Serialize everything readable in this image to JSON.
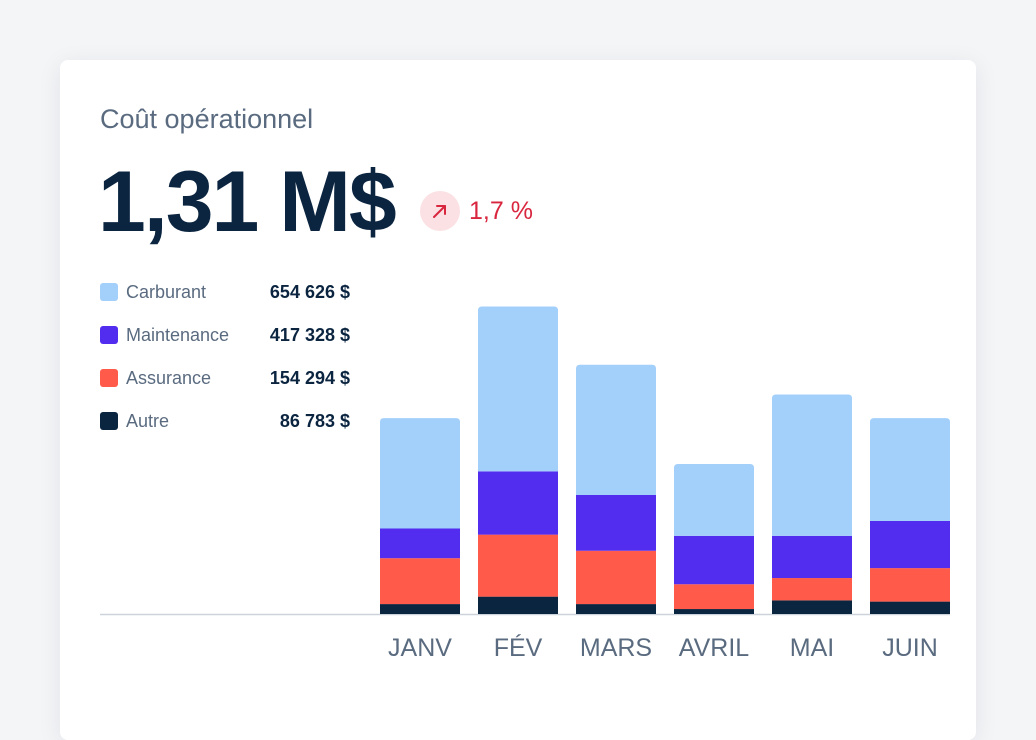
{
  "card": {
    "title": "Coût opérationnel",
    "total": "1,31 M$",
    "change": {
      "value": "1,7 %",
      "direction": "up",
      "color": "#d9263f",
      "icon": "arrow-up-right-icon"
    }
  },
  "legend": [
    {
      "label": "Carburant",
      "value": "654 626 $",
      "color": "#a3cffb"
    },
    {
      "label": "Maintenance",
      "value": "417 328 $",
      "color": "#522cef"
    },
    {
      "label": "Assurance",
      "value": "154 294 $",
      "color": "#ff5a4a"
    },
    {
      "label": "Autre",
      "value": "86 783 $",
      "color": "#0a2540"
    }
  ],
  "chart_data": {
    "type": "bar",
    "stacked": true,
    "title": "",
    "categories": [
      "JANV",
      "FÉV",
      "MARS",
      "AVRIL",
      "MAI",
      "JUIN"
    ],
    "series": [
      {
        "name": "Autre",
        "values": [
          8,
          14,
          8,
          4,
          11,
          10
        ]
      },
      {
        "name": "Assurance",
        "values": [
          37,
          50,
          43,
          20,
          18,
          27
        ]
      },
      {
        "name": "Maintenance",
        "values": [
          24,
          51,
          45,
          39,
          34,
          38
        ]
      },
      {
        "name": "Carburant",
        "values": [
          89,
          133,
          105,
          58,
          114,
          83
        ]
      }
    ],
    "ylim": [
      0,
      250
    ],
    "grid": false,
    "legend_position": "top-left"
  }
}
